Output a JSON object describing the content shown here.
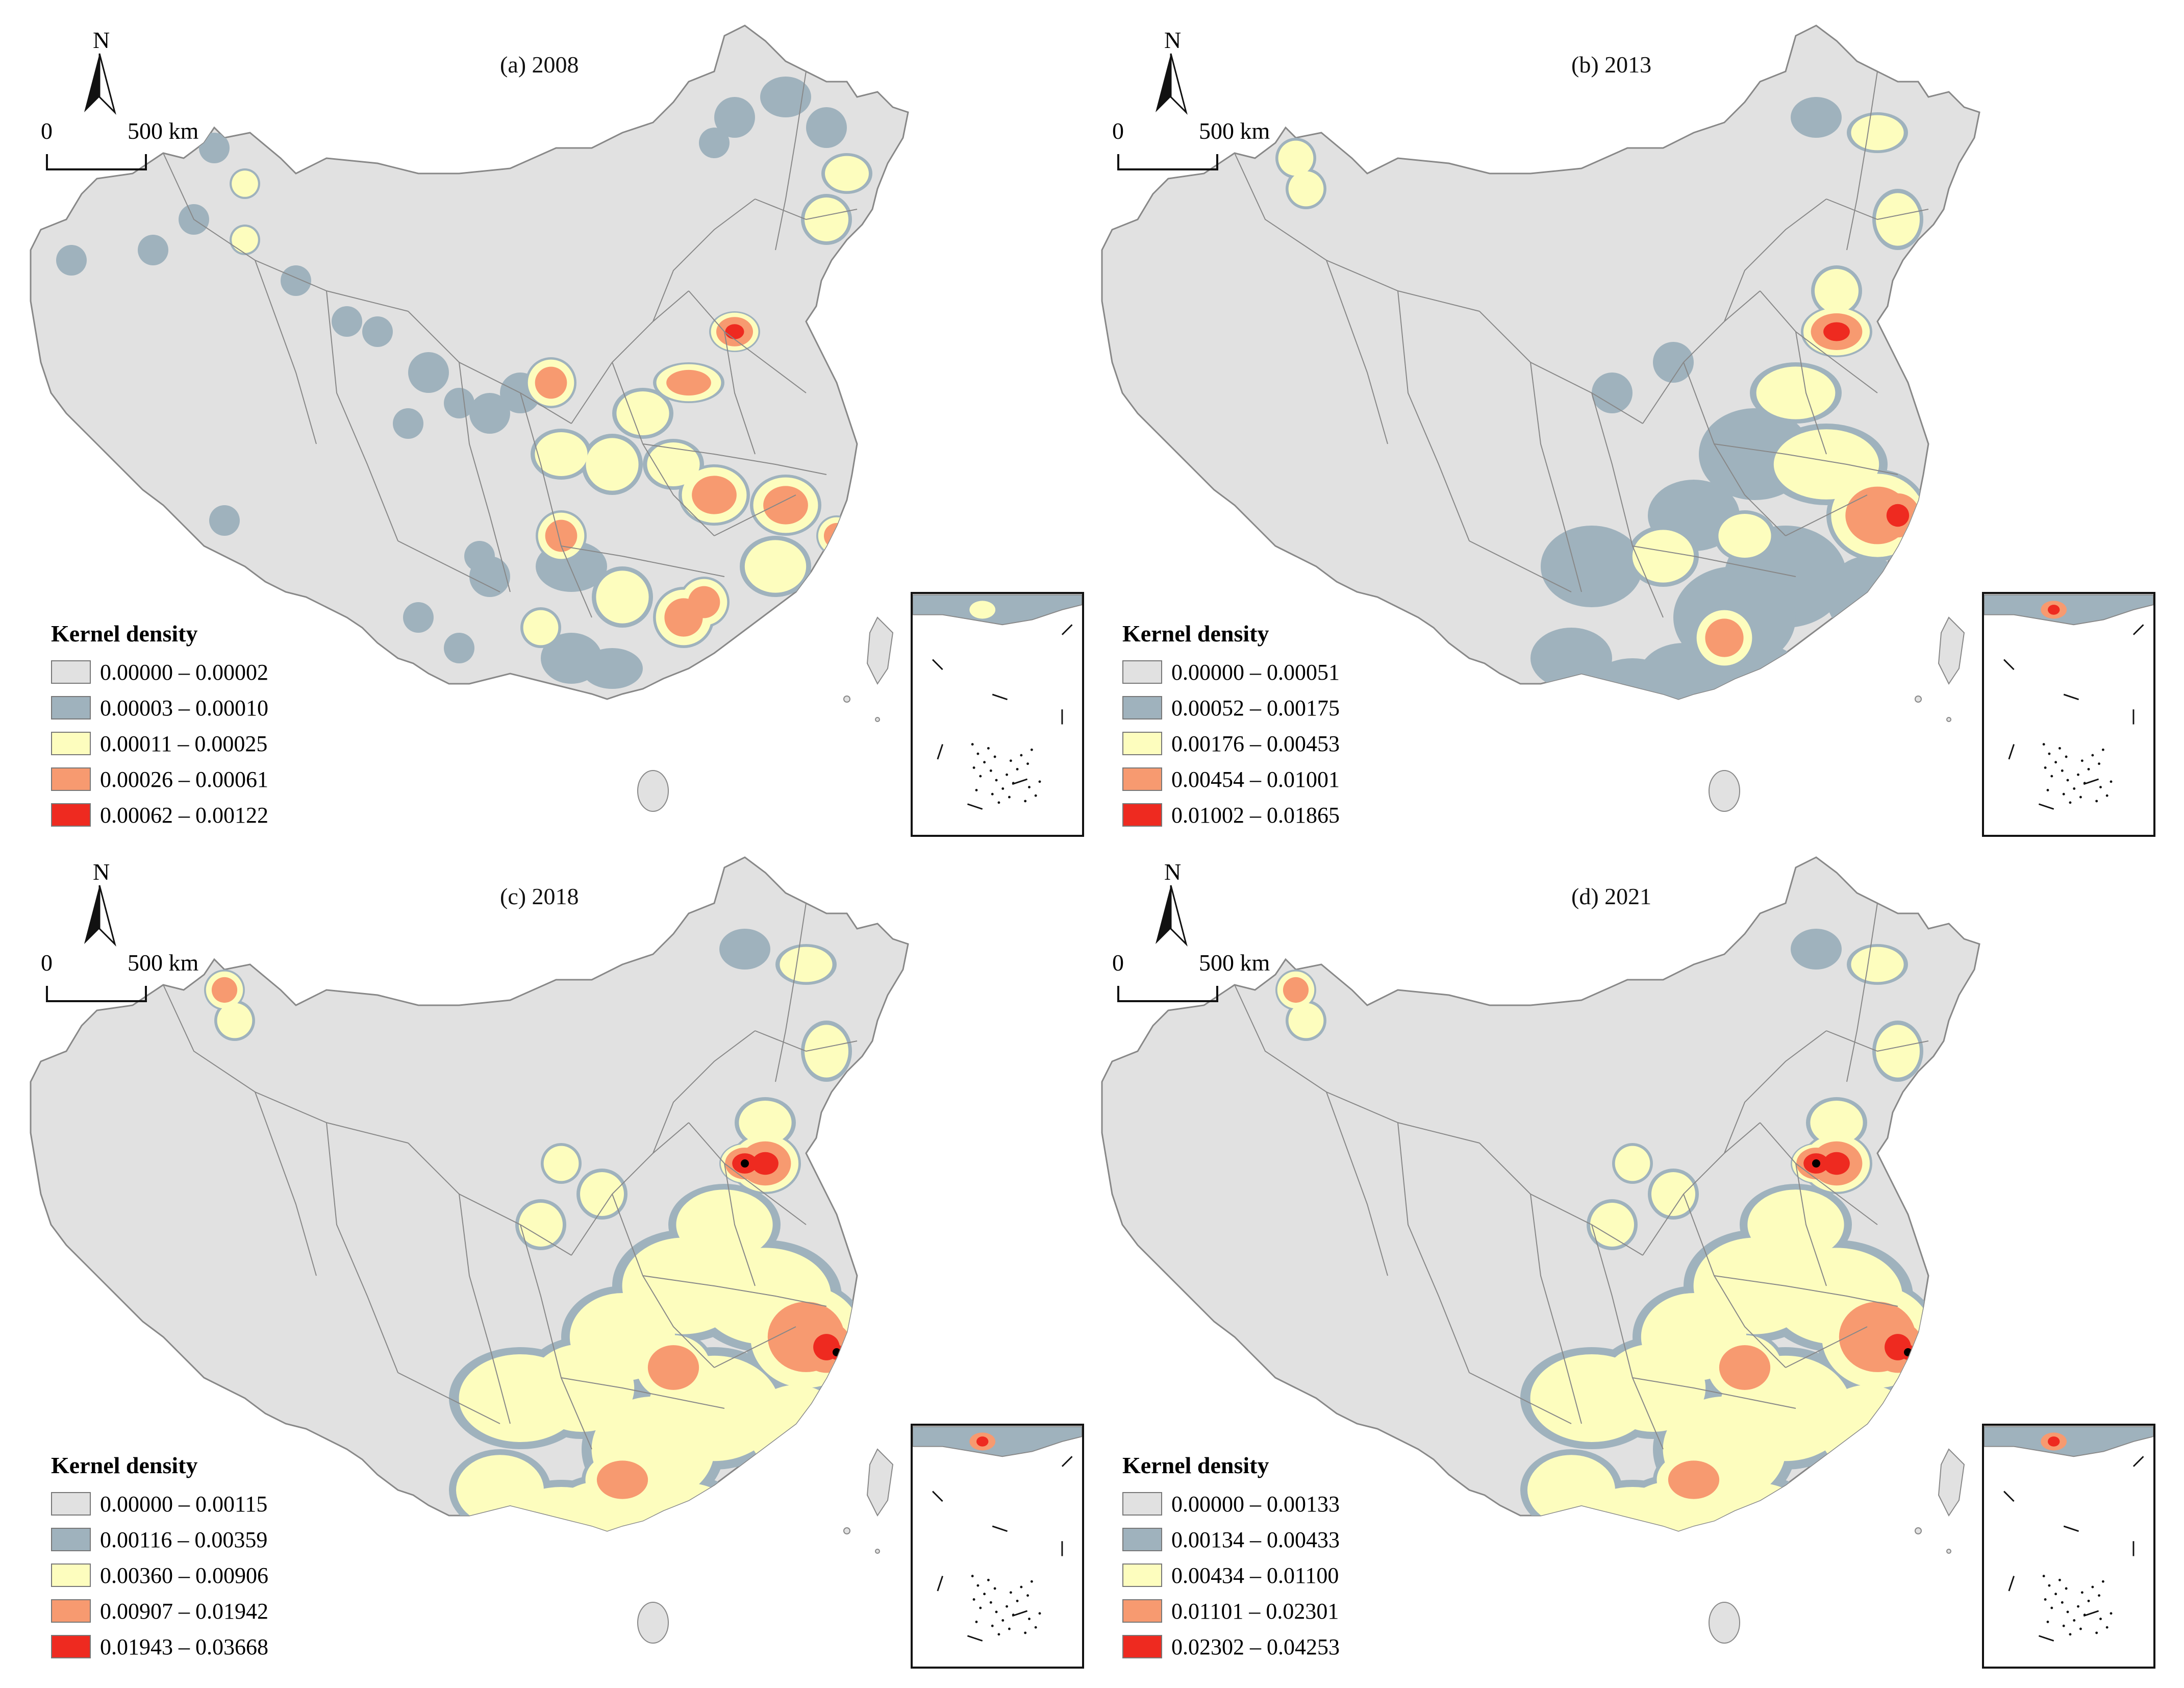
{
  "colors": {
    "c1": "#e1e1e1",
    "c2": "#9fb2bd",
    "c3": "#fdfdbe",
    "c4": "#f79a70",
    "c5": "#ee2a20",
    "border": "#888888"
  },
  "common": {
    "north_label": "N",
    "scale_zero": "0",
    "scale_label": "500 km",
    "legend_title": "Kernel density"
  },
  "panels": [
    {
      "title": "(a) 2008",
      "legend": [
        "0.00000 – 0.00002",
        "0.00003 – 0.00010",
        "0.00011 – 0.00025",
        "0.00026 – 0.00061",
        "0.00062 – 0.00122"
      ]
    },
    {
      "title": "(b) 2013",
      "legend": [
        "0.00000 – 0.00051",
        "0.00052 – 0.00175",
        "0.00176 – 0.00453",
        "0.00454 – 0.01001",
        "0.01002 – 0.01865"
      ]
    },
    {
      "title": "(c) 2018",
      "legend": [
        "0.00000 – 0.00115",
        "0.00116 – 0.00359",
        "0.00360 – 0.00906",
        "0.00907 – 0.01942",
        "0.01943 – 0.03668"
      ]
    },
    {
      "title": "(d) 2021",
      "legend": [
        "0.00000 – 0.00133",
        "0.00134 – 0.00433",
        "0.00434 – 0.01100",
        "0.01101 – 0.02301",
        "0.02302 – 0.04253"
      ]
    }
  ]
}
